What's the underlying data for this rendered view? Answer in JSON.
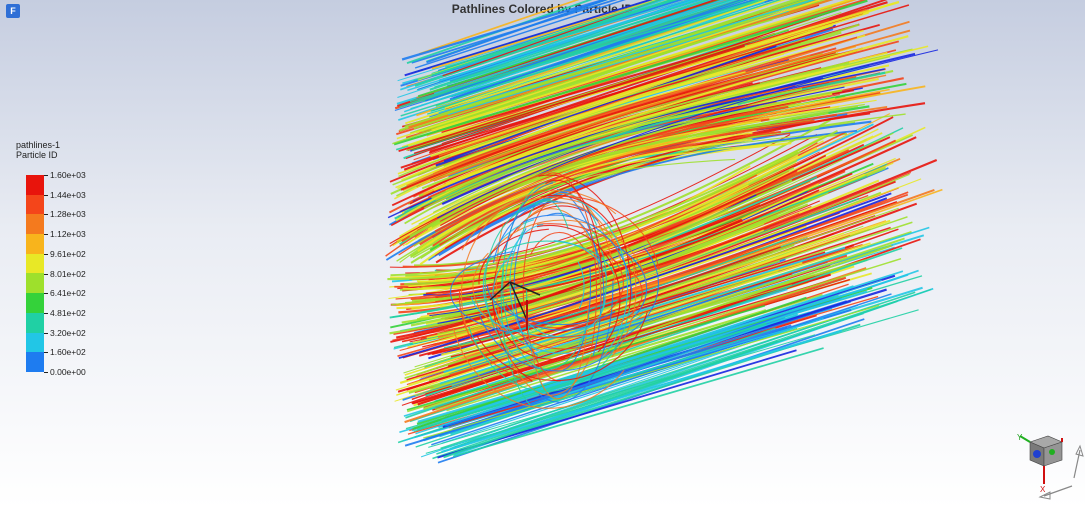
{
  "window": {
    "app_icon_glyph": "F"
  },
  "view": {
    "title": "Pathlines Colored by Particle ID"
  },
  "legend": {
    "name": "pathlines-1",
    "variable": "Particle ID",
    "tick_labels": [
      "1.60e+03",
      "1.44e+03",
      "1.28e+03",
      "1.12e+03",
      "9.61e+02",
      "8.01e+02",
      "6.41e+02",
      "4.81e+02",
      "3.20e+02",
      "1.60e+02",
      "0.00e+00"
    ],
    "colors": [
      "#e8140c",
      "#f4451a",
      "#f47a1e",
      "#f8b41c",
      "#e8e826",
      "#9ee02c",
      "#34d23a",
      "#20d0a4",
      "#22c6e6",
      "#1e7cf0",
      "#1626e0"
    ]
  },
  "triad": {
    "x_label": "X",
    "y_label": "Y",
    "z_label": "Z"
  },
  "icons": [
    "app-icon",
    "rotate-view-arrows-icon",
    "orientation-cube-icon"
  ]
}
